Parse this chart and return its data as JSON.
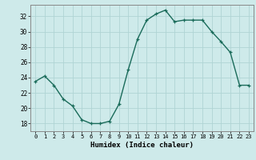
{
  "x": [
    0,
    1,
    2,
    3,
    4,
    5,
    6,
    7,
    8,
    9,
    10,
    11,
    12,
    13,
    14,
    15,
    16,
    17,
    18,
    19,
    20,
    21,
    22,
    23
  ],
  "y": [
    23.5,
    24.2,
    23.0,
    21.2,
    20.3,
    18.5,
    18.0,
    18.0,
    18.3,
    20.5,
    25.0,
    29.0,
    31.5,
    32.3,
    32.8,
    31.3,
    31.5,
    31.5,
    31.5,
    30.0,
    28.7,
    27.3,
    23.0,
    23.0
  ],
  "xlabel": "Humidex (Indice chaleur)",
  "xlim": [
    -0.5,
    23.5
  ],
  "ylim": [
    17.0,
    33.5
  ],
  "yticks": [
    18,
    20,
    22,
    24,
    26,
    28,
    30,
    32
  ],
  "xticks": [
    0,
    1,
    2,
    3,
    4,
    5,
    6,
    7,
    8,
    9,
    10,
    11,
    12,
    13,
    14,
    15,
    16,
    17,
    18,
    19,
    20,
    21,
    22,
    23
  ],
  "line_color": "#1a6b5a",
  "marker": "+",
  "bg_color": "#ceeaea",
  "grid_color": "#afd4d4",
  "spine_color": "#888888"
}
